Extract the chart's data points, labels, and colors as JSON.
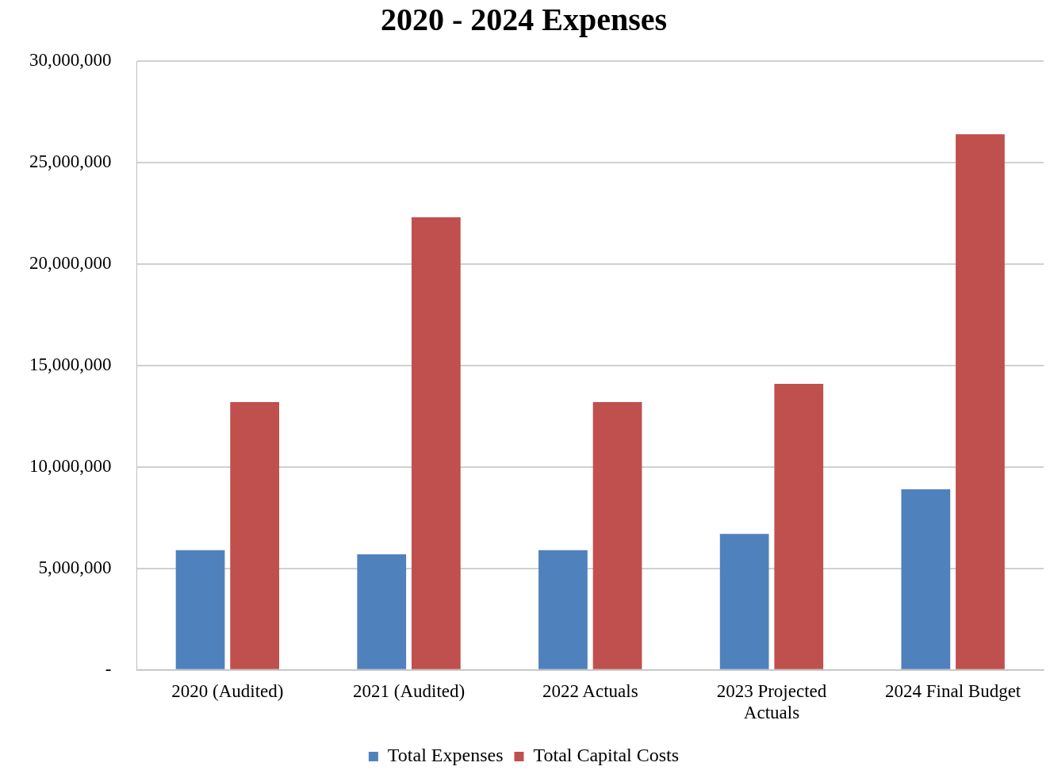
{
  "chart_data": {
    "type": "bar",
    "title": "2020 - 2024 Expenses",
    "categories": [
      "2020 (Audited)",
      "2021 (Audited)",
      "2022 Actuals",
      "2023 Projected Actuals",
      "2024 Final Budget"
    ],
    "series": [
      {
        "name": "Total Expenses",
        "color": "#4f81bd",
        "values": [
          5900000,
          5700000,
          5900000,
          6700000,
          8900000
        ]
      },
      {
        "name": "Total Capital Costs",
        "color": "#c0504d",
        "values": [
          13200000,
          22300000,
          13200000,
          14100000,
          26400000
        ]
      }
    ],
    "ylim": [
      0,
      30000000
    ],
    "yticks": [
      {
        "value": 0,
        "label": "-"
      },
      {
        "value": 5000000,
        "label": "5,000,000"
      },
      {
        "value": 10000000,
        "label": "10,000,000"
      },
      {
        "value": 15000000,
        "label": "15,000,000"
      },
      {
        "value": 20000000,
        "label": "20,000,000"
      },
      {
        "value": 25000000,
        "label": "25,000,000"
      },
      {
        "value": 30000000,
        "label": "30,000,000"
      }
    ],
    "grid": "y",
    "legend": "bottom"
  }
}
